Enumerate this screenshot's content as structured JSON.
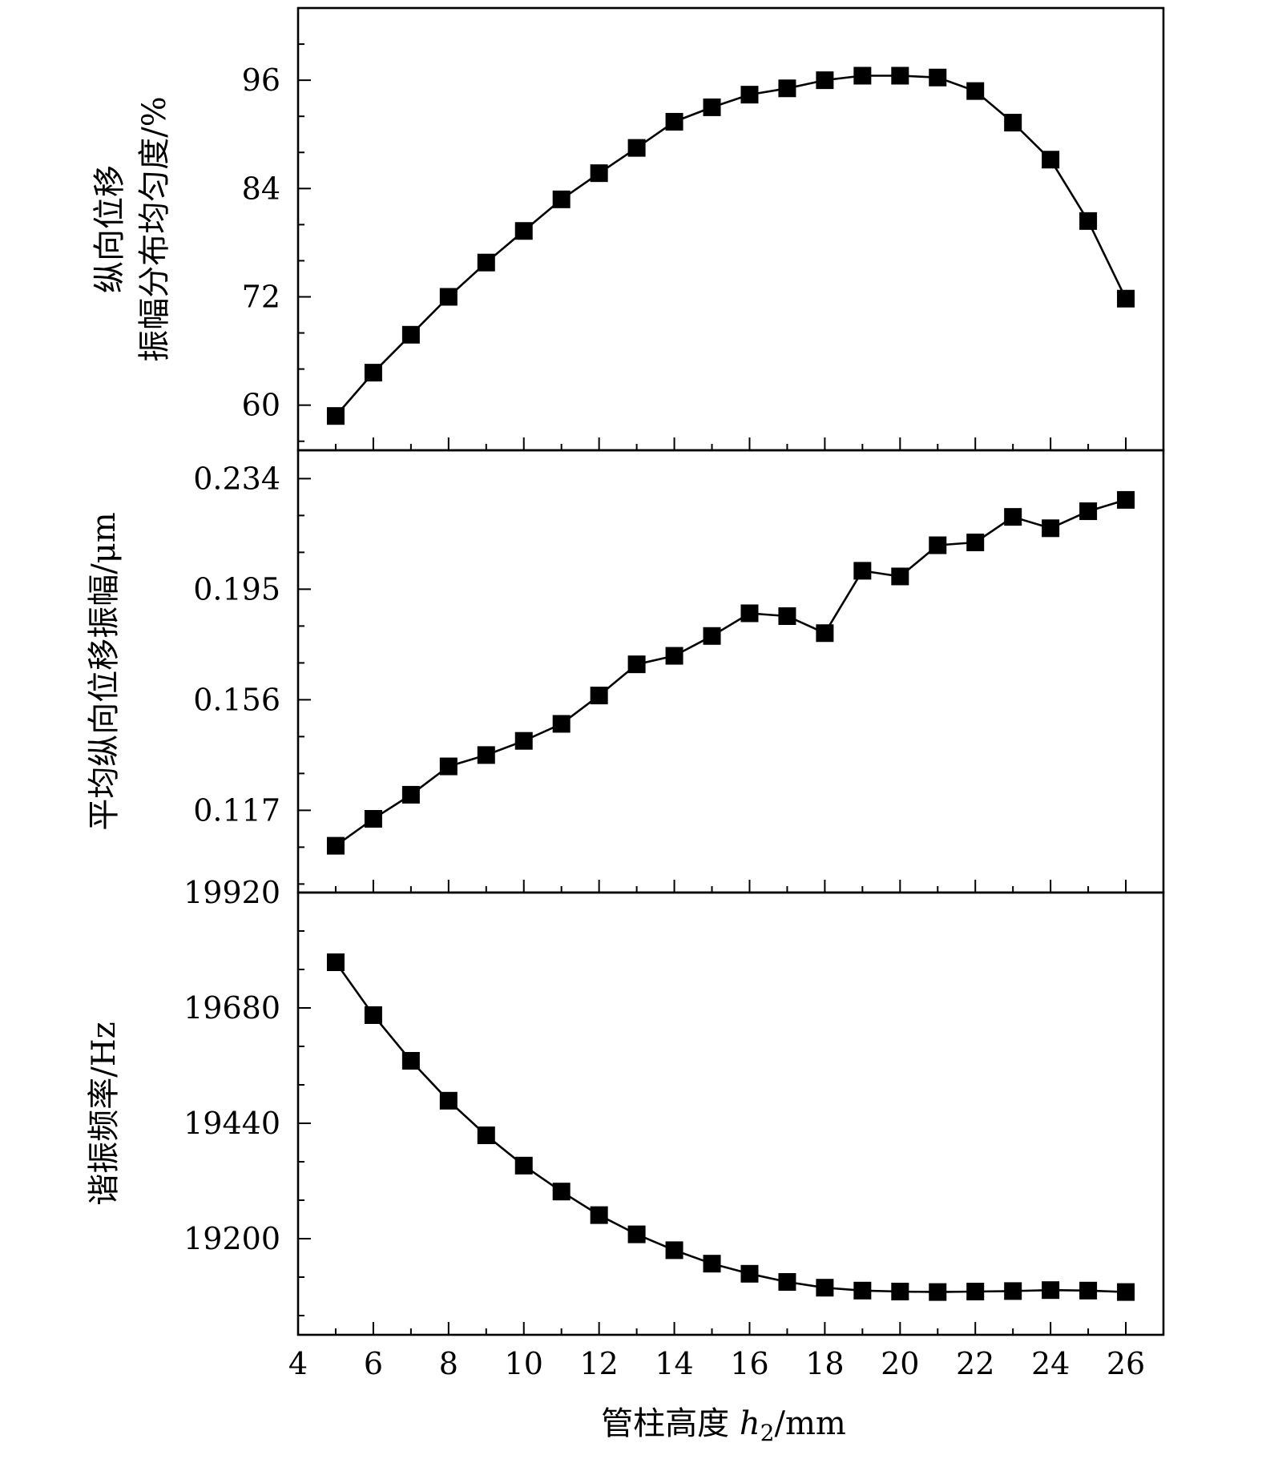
{
  "chart_data": [
    {
      "type": "line",
      "panel": "top",
      "ylabel_lines": [
        "纵向位移",
        "振幅分布均匀度/%"
      ],
      "ylim": [
        55,
        104
      ],
      "yticks": [
        60,
        72,
        84,
        96
      ],
      "ytick_labels": [
        "60",
        "72",
        "84",
        "96"
      ],
      "minor_step": 4,
      "x": [
        5,
        6,
        7,
        8,
        9,
        10,
        11,
        12,
        13,
        14,
        15,
        16,
        17,
        18,
        19,
        20,
        21,
        22,
        23,
        24,
        25,
        26
      ],
      "values": [
        58.8,
        63.6,
        67.8,
        72.0,
        75.8,
        79.3,
        82.8,
        85.7,
        88.5,
        91.4,
        93.0,
        94.4,
        95.1,
        96.0,
        96.5,
        96.5,
        96.3,
        94.8,
        91.3,
        87.2,
        80.4,
        71.8
      ]
    },
    {
      "type": "line",
      "panel": "middle",
      "ylabel": "平均纵向位移振幅/μm",
      "ylim": [
        0.088,
        0.244
      ],
      "yticks": [
        0.117,
        0.156,
        0.195,
        0.234
      ],
      "ytick_labels": [
        "0.117",
        "0.156",
        "0.195",
        "0.234"
      ],
      "minor_step": 0.013,
      "x": [
        5,
        6,
        7,
        8,
        9,
        10,
        11,
        12,
        13,
        14,
        15,
        16,
        17,
        18,
        19,
        20,
        21,
        22,
        23,
        24,
        25,
        26
      ],
      "values": [
        0.1045,
        0.114,
        0.1225,
        0.1325,
        0.1365,
        0.1415,
        0.1475,
        0.1575,
        0.1685,
        0.1715,
        0.1785,
        0.1865,
        0.1855,
        0.1795,
        0.2015,
        0.1995,
        0.2105,
        0.2115,
        0.2205,
        0.2165,
        0.2225,
        0.2265
      ]
    },
    {
      "type": "line",
      "panel": "bottom",
      "ylabel": "谐振频率/Hz",
      "ylim": [
        19000,
        19920
      ],
      "yticks": [
        19200,
        19440,
        19680,
        19920
      ],
      "ytick_labels": [
        "19200",
        "19440",
        "19680",
        "19920"
      ],
      "minor_step": 80,
      "x": [
        5,
        6,
        7,
        8,
        9,
        10,
        11,
        12,
        13,
        14,
        15,
        16,
        17,
        18,
        19,
        20,
        21,
        22,
        23,
        24,
        25,
        26
      ],
      "values": [
        19775,
        19665,
        19570,
        19487,
        19415,
        19352,
        19298,
        19249,
        19209,
        19176,
        19148,
        19127,
        19110,
        19098,
        19092,
        19090,
        19089,
        19090,
        19091,
        19093,
        19092,
        19089
      ]
    }
  ],
  "x_axis": {
    "label_prefix": "管柱高度 ",
    "label_var": "h",
    "label_sub": "2",
    "label_unit": "/mm",
    "xlim": [
      4,
      27
    ],
    "ticks": [
      4,
      6,
      8,
      10,
      12,
      14,
      16,
      18,
      20,
      22,
      24,
      26
    ],
    "tick_labels": [
      "4",
      "6",
      "8",
      "10",
      "12",
      "14",
      "16",
      "18",
      "20",
      "22",
      "24",
      "26"
    ],
    "minor_step": 1
  },
  "colors": {
    "line": "#000000",
    "marker": "#000000",
    "background": "#ffffff"
  }
}
